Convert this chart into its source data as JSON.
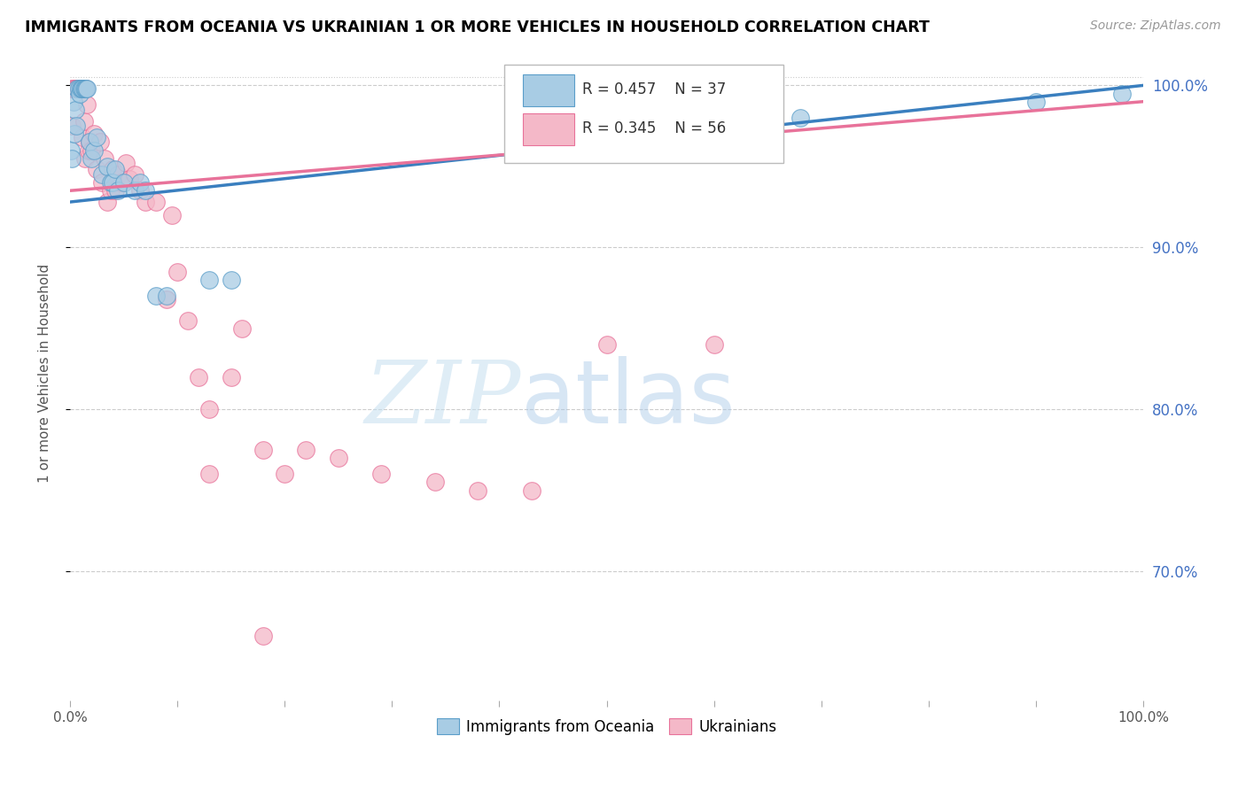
{
  "title": "IMMIGRANTS FROM OCEANIA VS UKRAINIAN 1 OR MORE VEHICLES IN HOUSEHOLD CORRELATION CHART",
  "source": "Source: ZipAtlas.com",
  "ylabel": "1 or more Vehicles in Household",
  "y_tick_labels": [
    "70.0%",
    "80.0%",
    "90.0%",
    "100.0%"
  ],
  "y_tick_values": [
    0.7,
    0.8,
    0.9,
    1.0
  ],
  "x_lim": [
    0.0,
    1.0
  ],
  "y_lim": [
    0.62,
    1.025
  ],
  "legend_blue_label": "Immigrants from Oceania",
  "legend_pink_label": "Ukrainians",
  "r_blue": 0.457,
  "n_blue": 37,
  "r_pink": 0.345,
  "n_pink": 56,
  "blue_color": "#a8cce4",
  "pink_color": "#f4b8c8",
  "blue_edge_color": "#5b9ec9",
  "pink_edge_color": "#e8729a",
  "blue_line_color": "#3a7fbf",
  "pink_line_color": "#e8729a",
  "watermark_zip": "ZIP",
  "watermark_atlas": "atlas",
  "blue_line_intercept": 0.928,
  "blue_line_slope": 0.072,
  "pink_line_intercept": 0.935,
  "pink_line_slope": 0.055,
  "blue_x": [
    0.001,
    0.002,
    0.003,
    0.004,
    0.005,
    0.006,
    0.007,
    0.008,
    0.009,
    0.01,
    0.011,
    0.012,
    0.013,
    0.014,
    0.015,
    0.016,
    0.018,
    0.02,
    0.022,
    0.025,
    0.03,
    0.035,
    0.038,
    0.04,
    0.042,
    0.045,
    0.05,
    0.06,
    0.065,
    0.07,
    0.08,
    0.09,
    0.13,
    0.15,
    0.68,
    0.9,
    0.98
  ],
  "blue_y": [
    0.96,
    0.955,
    0.99,
    0.97,
    0.985,
    0.975,
    0.998,
    0.998,
    0.995,
    0.998,
    0.998,
    0.998,
    0.998,
    0.998,
    0.998,
    0.998,
    0.965,
    0.955,
    0.96,
    0.968,
    0.945,
    0.95,
    0.94,
    0.94,
    0.948,
    0.935,
    0.94,
    0.935,
    0.94,
    0.935,
    0.87,
    0.87,
    0.88,
    0.88,
    0.98,
    0.99,
    0.995
  ],
  "pink_x": [
    0.001,
    0.002,
    0.003,
    0.004,
    0.005,
    0.006,
    0.007,
    0.008,
    0.009,
    0.01,
    0.011,
    0.012,
    0.013,
    0.014,
    0.015,
    0.016,
    0.017,
    0.018,
    0.02,
    0.022,
    0.025,
    0.028,
    0.03,
    0.032,
    0.035,
    0.038,
    0.04,
    0.042,
    0.045,
    0.048,
    0.052,
    0.055,
    0.06,
    0.065,
    0.07,
    0.08,
    0.09,
    0.095,
    0.1,
    0.11,
    0.12,
    0.13,
    0.15,
    0.16,
    0.18,
    0.2,
    0.22,
    0.25,
    0.29,
    0.34,
    0.38,
    0.43,
    0.5,
    0.6,
    0.13,
    0.18
  ],
  "pink_y": [
    0.998,
    0.975,
    0.998,
    0.998,
    0.998,
    0.998,
    0.998,
    0.998,
    0.998,
    0.998,
    0.998,
    0.968,
    0.978,
    0.955,
    0.998,
    0.988,
    0.96,
    0.965,
    0.96,
    0.97,
    0.948,
    0.965,
    0.94,
    0.955,
    0.928,
    0.935,
    0.948,
    0.935,
    0.945,
    0.94,
    0.952,
    0.942,
    0.945,
    0.935,
    0.928,
    0.928,
    0.868,
    0.92,
    0.885,
    0.855,
    0.82,
    0.8,
    0.82,
    0.85,
    0.775,
    0.76,
    0.775,
    0.77,
    0.76,
    0.755,
    0.75,
    0.75,
    0.84,
    0.84,
    0.76,
    0.66
  ]
}
